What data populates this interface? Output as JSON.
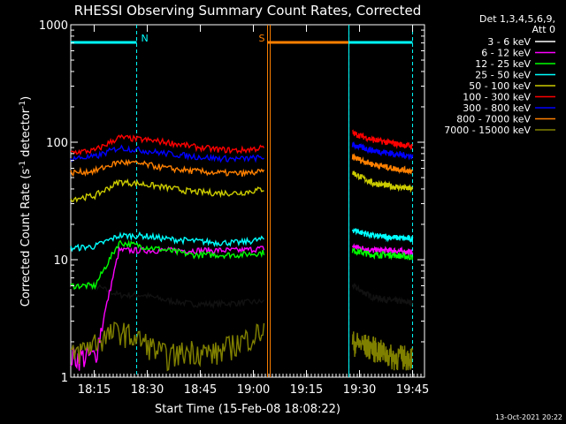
{
  "chart_data": {
    "type": "line",
    "title": "RHESSI Observing Summary Count Rates, Corrected",
    "xlabel": "Start Time (15-Feb-08 18:08:22)",
    "ylabel_main": "Corrected Count Rate (s",
    "ylabel_sup1": "-1",
    "ylabel_mid": " detector",
    "ylabel_sup2": "-1",
    "ylabel_end": ")",
    "y_scale": "log",
    "ylim": [
      1,
      1000
    ],
    "xlim_minutes": [
      0,
      100
    ],
    "x_ticks": [
      "18:15",
      "18:30",
      "18:45",
      "19:00",
      "19:15",
      "19:30",
      "19:45"
    ],
    "y_ticks": [
      "1",
      "10",
      "100",
      "1000"
    ],
    "legend_header": [
      "Det 1,3,4,5,6,9,",
      "Att 0"
    ],
    "legend_position": "right",
    "date_stamp": "13-Oct-2021 20:22",
    "markers": {
      "night_1": {
        "label": "N",
        "start": "18:08",
        "end": "18:27",
        "color": "#00ffff"
      },
      "night_2": {
        "label": "",
        "start": "19:27",
        "end": "19:45",
        "color": "#00ffff"
      },
      "saa": {
        "label": "S",
        "start": "19:04",
        "end": "19:27",
        "color": "#ff8000"
      },
      "dashed_lines": [
        "18:27",
        "19:27",
        "19:45"
      ]
    },
    "series": [
      {
        "name": "3 - 6 keV",
        "color": "#000000",
        "seg1": [
          6,
          6,
          5,
          5,
          4.5,
          4.2,
          4.2,
          4.3,
          4.4
        ],
        "seg2": [
          6,
          4.8,
          4.5,
          4.3
        ]
      },
      {
        "name": "6 - 12 keV",
        "color": "#ff00ff",
        "seg1": [
          1.5,
          1.5,
          12,
          12,
          12,
          12,
          12,
          12,
          12.5
        ],
        "seg2": [
          13,
          12,
          12,
          11.5
        ]
      },
      {
        "name": "12 - 25 keV",
        "color": "#00ff00",
        "seg1": [
          6,
          6,
          14,
          13,
          12,
          11,
          11,
          11,
          11.5
        ],
        "seg2": [
          12,
          11,
          11,
          10.5
        ]
      },
      {
        "name": "25 - 50 keV",
        "color": "#00ffff",
        "seg1": [
          12.5,
          13,
          16,
          16,
          15,
          14.5,
          14,
          14,
          15
        ],
        "seg2": [
          18,
          16,
          15.5,
          15
        ]
      },
      {
        "name": "50 - 100 keV",
        "color": "#cccc00",
        "seg1": [
          33,
          35,
          46,
          44,
          41,
          38,
          37,
          37,
          40
        ],
        "seg2": [
          55,
          45,
          42,
          40
        ]
      },
      {
        "name": "100 - 300 keV",
        "color": "#ff0000",
        "seg1": [
          82,
          85,
          110,
          105,
          100,
          92,
          87,
          85,
          90
        ],
        "seg2": [
          120,
          105,
          98,
          92
        ]
      },
      {
        "name": "300 - 800 keV",
        "color": "#0000ff",
        "seg1": [
          73,
          75,
          90,
          85,
          80,
          76,
          73,
          72,
          74
        ],
        "seg2": [
          95,
          85,
          80,
          76
        ]
      },
      {
        "name": "800 - 7000 keV",
        "color": "#ff8000",
        "seg1": [
          55,
          57,
          68,
          65,
          60,
          57,
          55,
          54,
          56
        ],
        "seg2": [
          75,
          65,
          60,
          57
        ]
      },
      {
        "name": "7000 - 15000 keV",
        "color": "#808000",
        "seg1": [
          1.5,
          2,
          2.5,
          2,
          1.5,
          1.7,
          1.6,
          2,
          2.5
        ],
        "seg2": [
          2,
          1.8,
          1.5,
          1.5
        ]
      }
    ]
  }
}
